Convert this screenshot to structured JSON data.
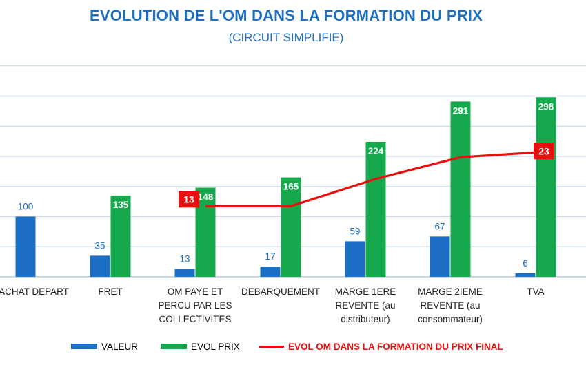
{
  "chart_data": {
    "type": "bar",
    "title": "EVOLUTION DE L'OM DANS LA FORMATION DU PRIX",
    "subtitle": "(CIRCUIT SIMPLIFIE)",
    "categories": [
      [
        "ACHAT DEPART"
      ],
      [
        "FRET"
      ],
      [
        "OM PAYE ET",
        "PERCU PAR LES",
        "COLLECTIVITES"
      ],
      [
        "DEBARQUEMENT"
      ],
      [
        "MARGE 1ERE",
        "REVENTE (au",
        "distributeur)"
      ],
      [
        "MARGE 2IEME",
        "REVENTE (au",
        "consommateur)"
      ],
      [
        "TVA"
      ]
    ],
    "series": [
      {
        "name": "VALEUR",
        "type": "bar",
        "color": "#1c6fc4",
        "values": [
          100,
          35,
          13,
          17,
          59,
          67,
          6
        ]
      },
      {
        "name": "EVOL PRIX",
        "type": "bar",
        "color": "#16a84d",
        "values": [
          null,
          135,
          148,
          165,
          224,
          291,
          298
        ]
      },
      {
        "name": "EVOL OM DANS LA FORMATION DU PRIX FINAL",
        "type": "line",
        "color": "#e8110f",
        "values": [
          null,
          null,
          13,
          13,
          18,
          22,
          23
        ]
      }
    ],
    "line_labels": {
      "start": "13",
      "end": "23"
    },
    "bar_ylim": [
      0,
      350
    ],
    "line_ylim": [
      0,
      30
    ],
    "grid": true,
    "legend_position": "bottom"
  }
}
